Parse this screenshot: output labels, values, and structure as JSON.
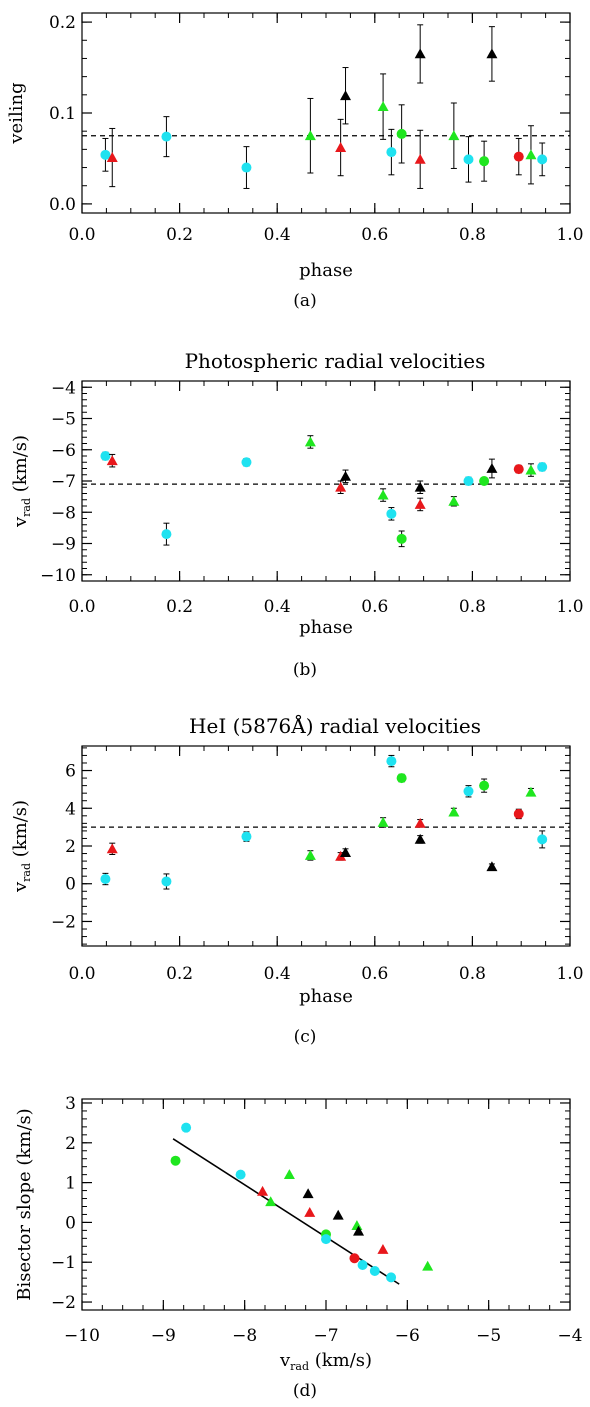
{
  "colors": {
    "red": "#e8171b",
    "green": "#1fe61f",
    "cyan": "#1fe2f0",
    "black": "#000000"
  },
  "chart_data": [
    {
      "id": "a",
      "type": "scatter",
      "caption": "(a)",
      "title": "",
      "xlabel": "phase",
      "ylabel": "veiling",
      "xlim": [
        0.0,
        1.0
      ],
      "ylim": [
        -0.01,
        0.21
      ],
      "xticks": [
        0.0,
        0.2,
        0.4,
        0.6,
        0.8,
        1.0
      ],
      "xtick_labels": [
        "0.0",
        "0.2",
        "0.4",
        "0.6",
        "0.8",
        "1.0"
      ],
      "yticks": [
        0.0,
        0.1,
        0.2
      ],
      "ytick_labels": [
        "0.0",
        "0.1",
        "0.2"
      ],
      "reference_line": 0.075,
      "points": [
        {
          "x": 0.048,
          "y": 0.054,
          "err": 0.018,
          "marker": "circle",
          "color": "cyan"
        },
        {
          "x": 0.062,
          "y": 0.051,
          "err": 0.032,
          "marker": "triangle",
          "color": "red"
        },
        {
          "x": 0.173,
          "y": 0.074,
          "err": 0.022,
          "marker": "circle",
          "color": "cyan"
        },
        {
          "x": 0.337,
          "y": 0.04,
          "err": 0.023,
          "marker": "circle",
          "color": "cyan"
        },
        {
          "x": 0.468,
          "y": 0.075,
          "err": 0.041,
          "marker": "triangle",
          "color": "green"
        },
        {
          "x": 0.53,
          "y": 0.062,
          "err": 0.031,
          "marker": "triangle",
          "color": "red"
        },
        {
          "x": 0.54,
          "y": 0.119,
          "err": 0.031,
          "marker": "triangle",
          "color": "black"
        },
        {
          "x": 0.617,
          "y": 0.107,
          "err": 0.036,
          "marker": "triangle",
          "color": "green"
        },
        {
          "x": 0.634,
          "y": 0.057,
          "err": 0.025,
          "marker": "circle",
          "color": "cyan"
        },
        {
          "x": 0.655,
          "y": 0.077,
          "err": 0.032,
          "marker": "circle",
          "color": "green"
        },
        {
          "x": 0.693,
          "y": 0.165,
          "err": 0.032,
          "marker": "triangle",
          "color": "black"
        },
        {
          "x": 0.693,
          "y": 0.049,
          "err": 0.032,
          "marker": "triangle",
          "color": "red"
        },
        {
          "x": 0.762,
          "y": 0.075,
          "err": 0.036,
          "marker": "triangle",
          "color": "green"
        },
        {
          "x": 0.792,
          "y": 0.049,
          "err": 0.025,
          "marker": "circle",
          "color": "cyan"
        },
        {
          "x": 0.824,
          "y": 0.047,
          "err": 0.022,
          "marker": "circle",
          "color": "green"
        },
        {
          "x": 0.84,
          "y": 0.165,
          "err": 0.03,
          "marker": "triangle",
          "color": "black"
        },
        {
          "x": 0.895,
          "y": 0.052,
          "err": 0.02,
          "marker": "circle",
          "color": "red"
        },
        {
          "x": 0.92,
          "y": 0.054,
          "err": 0.032,
          "marker": "triangle",
          "color": "green"
        },
        {
          "x": 0.943,
          "y": 0.049,
          "err": 0.018,
          "marker": "circle",
          "color": "cyan"
        }
      ]
    },
    {
      "id": "b",
      "type": "scatter",
      "caption": "(b)",
      "title": "Photospheric radial velocities",
      "xlabel": "phase",
      "ylabel": "v",
      "ylabel_sub": "rad",
      "ylabel_unit": " (km/s)",
      "xlim": [
        0.0,
        1.0
      ],
      "ylim": [
        -10.2,
        -3.8
      ],
      "xticks": [
        0.0,
        0.2,
        0.4,
        0.6,
        0.8,
        1.0
      ],
      "xtick_labels": [
        "0.0",
        "0.2",
        "0.4",
        "0.6",
        "0.8",
        "1.0"
      ],
      "yticks": [
        -10,
        -9,
        -8,
        -7,
        -6,
        -5,
        -4
      ],
      "ytick_labels": [
        "−10",
        "−9",
        "−8",
        "−7",
        "−6",
        "−5",
        "−4"
      ],
      "reference_line": -7.1,
      "points": [
        {
          "x": 0.048,
          "y": -6.2,
          "err": 0.12,
          "marker": "circle",
          "color": "cyan"
        },
        {
          "x": 0.062,
          "y": -6.35,
          "err": 0.2,
          "marker": "triangle",
          "color": "red"
        },
        {
          "x": 0.173,
          "y": -8.7,
          "err": 0.35,
          "marker": "circle",
          "color": "cyan"
        },
        {
          "x": 0.337,
          "y": -6.4,
          "err": 0.12,
          "marker": "circle",
          "color": "cyan"
        },
        {
          "x": 0.468,
          "y": -5.75,
          "err": 0.2,
          "marker": "triangle",
          "color": "green"
        },
        {
          "x": 0.53,
          "y": -7.2,
          "err": 0.2,
          "marker": "triangle",
          "color": "red"
        },
        {
          "x": 0.54,
          "y": -6.85,
          "err": 0.2,
          "marker": "triangle",
          "color": "black"
        },
        {
          "x": 0.617,
          "y": -7.45,
          "err": 0.2,
          "marker": "triangle",
          "color": "green"
        },
        {
          "x": 0.634,
          "y": -8.05,
          "err": 0.2,
          "marker": "circle",
          "color": "cyan"
        },
        {
          "x": 0.655,
          "y": -8.85,
          "err": 0.25,
          "marker": "circle",
          "color": "green"
        },
        {
          "x": 0.693,
          "y": -7.2,
          "err": 0.2,
          "marker": "triangle",
          "color": "black"
        },
        {
          "x": 0.693,
          "y": -7.75,
          "err": 0.2,
          "marker": "triangle",
          "color": "red"
        },
        {
          "x": 0.762,
          "y": -7.65,
          "err": 0.15,
          "marker": "triangle",
          "color": "green"
        },
        {
          "x": 0.792,
          "y": -7.0,
          "err": 0.12,
          "marker": "circle",
          "color": "cyan"
        },
        {
          "x": 0.824,
          "y": -7.0,
          "err": 0.1,
          "marker": "circle",
          "color": "green"
        },
        {
          "x": 0.84,
          "y": -6.6,
          "err": 0.3,
          "marker": "triangle",
          "color": "black"
        },
        {
          "x": 0.895,
          "y": -6.62,
          "err": 0.12,
          "marker": "circle",
          "color": "red"
        },
        {
          "x": 0.92,
          "y": -6.65,
          "err": 0.2,
          "marker": "triangle",
          "color": "green"
        },
        {
          "x": 0.943,
          "y": -6.55,
          "err": 0.12,
          "marker": "circle",
          "color": "cyan"
        }
      ]
    },
    {
      "id": "c",
      "type": "scatter",
      "caption": "(c)",
      "title": "HeI (5876Å) radial velocities",
      "xlabel": "phase",
      "ylabel": "v",
      "ylabel_sub": "rad",
      "ylabel_unit": " (km/s)",
      "xlim": [
        0.0,
        1.0
      ],
      "ylim": [
        -3.3,
        7.3
      ],
      "xticks": [
        0.0,
        0.2,
        0.4,
        0.6,
        0.8,
        1.0
      ],
      "xtick_labels": [
        "0.0",
        "0.2",
        "0.4",
        "0.6",
        "0.8",
        "1.0"
      ],
      "yticks": [
        -2,
        0,
        2,
        4,
        6
      ],
      "ytick_labels": [
        "−2",
        "0",
        "2",
        "4",
        "6"
      ],
      "reference_line": 3.0,
      "points": [
        {
          "x": 0.048,
          "y": 0.25,
          "err": 0.3,
          "marker": "circle",
          "color": "cyan"
        },
        {
          "x": 0.062,
          "y": 1.85,
          "err": 0.3,
          "marker": "triangle",
          "color": "red"
        },
        {
          "x": 0.173,
          "y": 0.12,
          "err": 0.4,
          "marker": "circle",
          "color": "cyan"
        },
        {
          "x": 0.337,
          "y": 2.5,
          "err": 0.25,
          "marker": "circle",
          "color": "cyan"
        },
        {
          "x": 0.468,
          "y": 1.5,
          "err": 0.25,
          "marker": "triangle",
          "color": "green"
        },
        {
          "x": 0.53,
          "y": 1.45,
          "err": 0.2,
          "marker": "triangle",
          "color": "red"
        },
        {
          "x": 0.54,
          "y": 1.65,
          "err": 0.2,
          "marker": "triangle",
          "color": "black"
        },
        {
          "x": 0.617,
          "y": 3.25,
          "err": 0.25,
          "marker": "triangle",
          "color": "green"
        },
        {
          "x": 0.634,
          "y": 6.5,
          "err": 0.3,
          "marker": "circle",
          "color": "cyan"
        },
        {
          "x": 0.655,
          "y": 5.6,
          "err": 0.2,
          "marker": "circle",
          "color": "green"
        },
        {
          "x": 0.693,
          "y": 2.35,
          "err": 0.2,
          "marker": "triangle",
          "color": "black"
        },
        {
          "x": 0.693,
          "y": 3.2,
          "err": 0.2,
          "marker": "triangle",
          "color": "red"
        },
        {
          "x": 0.762,
          "y": 3.8,
          "err": 0.2,
          "marker": "triangle",
          "color": "green"
        },
        {
          "x": 0.792,
          "y": 4.9,
          "err": 0.3,
          "marker": "circle",
          "color": "cyan"
        },
        {
          "x": 0.824,
          "y": 5.2,
          "err": 0.35,
          "marker": "circle",
          "color": "green"
        },
        {
          "x": 0.84,
          "y": 0.9,
          "err": 0.15,
          "marker": "triangle",
          "color": "black"
        },
        {
          "x": 0.895,
          "y": 3.7,
          "err": 0.25,
          "marker": "circle",
          "color": "red"
        },
        {
          "x": 0.92,
          "y": 4.85,
          "err": 0.2,
          "marker": "triangle",
          "color": "green"
        },
        {
          "x": 0.943,
          "y": 2.35,
          "err": 0.45,
          "marker": "circle",
          "color": "cyan"
        }
      ]
    },
    {
      "id": "d",
      "type": "scatter",
      "caption": "(d)",
      "title": "",
      "xlabel": "v",
      "xlabel_sub": "rad",
      "xlabel_unit": " (km/s)",
      "ylabel": "Bisector slope (km/s)",
      "xlim": [
        -10,
        -4
      ],
      "ylim": [
        -2.2,
        3.1
      ],
      "xticks": [
        -10,
        -9,
        -8,
        -7,
        -6,
        -5,
        -4
      ],
      "xtick_labels": [
        "−10",
        "−9",
        "−8",
        "−7",
        "−6",
        "−5",
        "−4"
      ],
      "yticks": [
        -2,
        -1,
        0,
        1,
        2,
        3
      ],
      "ytick_labels": [
        "−2",
        "−1",
        "0",
        "1",
        "2",
        "3"
      ],
      "fit_line": [
        [
          -8.88,
          2.1
        ],
        [
          -6.1,
          -1.55
        ]
      ],
      "points": [
        {
          "x": -8.85,
          "y": 1.55,
          "marker": "circle",
          "color": "green"
        },
        {
          "x": -8.72,
          "y": 2.38,
          "marker": "circle",
          "color": "cyan"
        },
        {
          "x": -8.05,
          "y": 1.2,
          "marker": "circle",
          "color": "cyan"
        },
        {
          "x": -7.78,
          "y": 0.78,
          "marker": "triangle",
          "color": "red"
        },
        {
          "x": -7.68,
          "y": 0.52,
          "marker": "triangle",
          "color": "green"
        },
        {
          "x": -7.45,
          "y": 1.2,
          "marker": "triangle",
          "color": "green"
        },
        {
          "x": -7.22,
          "y": 0.72,
          "marker": "triangle",
          "color": "black"
        },
        {
          "x": -7.2,
          "y": 0.25,
          "marker": "triangle",
          "color": "red"
        },
        {
          "x": -7.0,
          "y": -0.3,
          "marker": "circle",
          "color": "green"
        },
        {
          "x": -7.0,
          "y": -0.42,
          "marker": "circle",
          "color": "cyan"
        },
        {
          "x": -6.85,
          "y": 0.18,
          "marker": "triangle",
          "color": "black"
        },
        {
          "x": -6.65,
          "y": -0.9,
          "marker": "circle",
          "color": "red"
        },
        {
          "x": -6.62,
          "y": -0.08,
          "marker": "triangle",
          "color": "green"
        },
        {
          "x": -6.6,
          "y": -0.22,
          "marker": "triangle",
          "color": "black"
        },
        {
          "x": -6.55,
          "y": -1.07,
          "marker": "circle",
          "color": "cyan"
        },
        {
          "x": -6.4,
          "y": -1.22,
          "marker": "circle",
          "color": "cyan"
        },
        {
          "x": -6.3,
          "y": -0.68,
          "marker": "triangle",
          "color": "red"
        },
        {
          "x": -6.2,
          "y": -1.38,
          "marker": "circle",
          "color": "cyan"
        },
        {
          "x": -5.75,
          "y": -1.1,
          "marker": "triangle",
          "color": "green"
        }
      ]
    }
  ]
}
